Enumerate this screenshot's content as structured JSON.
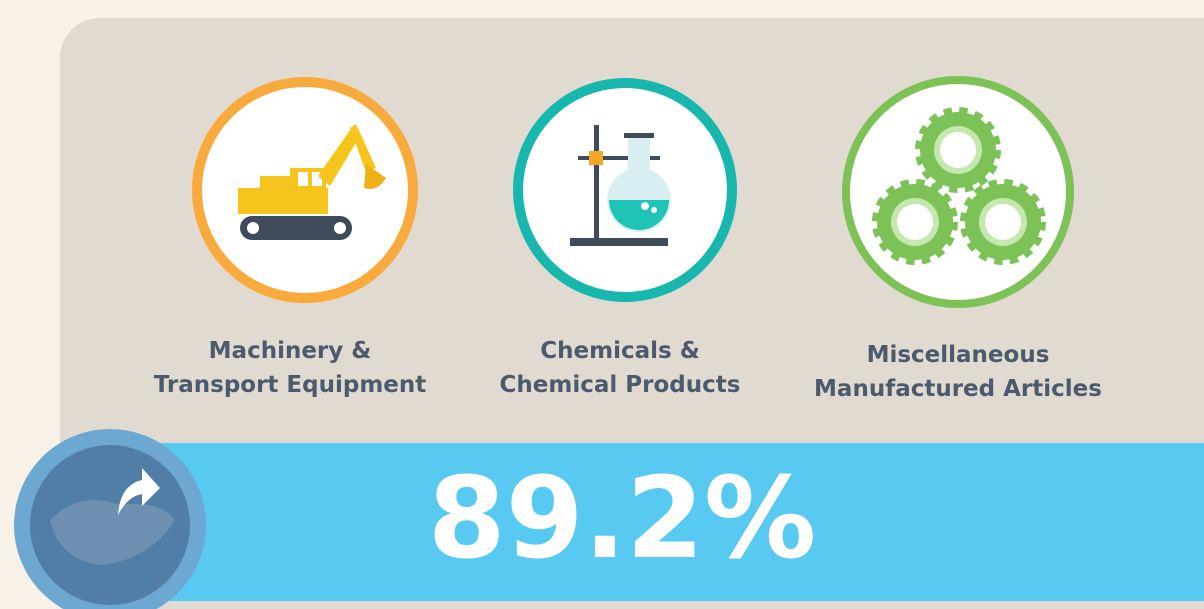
{
  "items": [
    {
      "label": [
        "Machinery &",
        "Transport Equipment"
      ]
    },
    {
      "label": [
        "Chemicals &",
        "Chemical Products"
      ]
    },
    {
      "label": [
        "Miscellaneous",
        "Manufactured Articles"
      ]
    }
  ],
  "stat": {
    "value": "89.2%"
  }
}
